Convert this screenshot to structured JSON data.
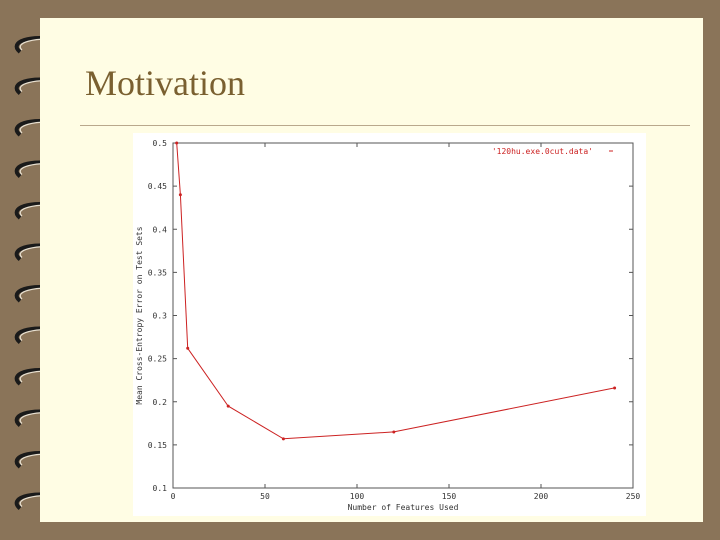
{
  "slide": {
    "title": "Motivation"
  },
  "colors": {
    "background": "#8a7459",
    "slide": "#fffde4",
    "title": "#7a6030",
    "series": "#cc2222"
  },
  "chart_data": {
    "type": "line",
    "xlabel": "Number of Features Used",
    "ylabel": "Mean Cross-Entropy Error on Test Sets",
    "xlim": [
      0,
      250
    ],
    "ylim": [
      0.1,
      0.5
    ],
    "x_ticks": [
      "0",
      "50",
      "100",
      "150",
      "200",
      "250"
    ],
    "y_ticks": [
      "0.1",
      "0.15",
      "0.2",
      "0.25",
      "0.3",
      "0.35",
      "0.4",
      "0.45",
      "0.5"
    ],
    "legend": "top-right",
    "series": [
      {
        "name": "'120hu.exe.0cut.data'",
        "x": [
          2,
          4,
          8,
          30,
          60,
          120,
          240
        ],
        "y": [
          0.5,
          0.44,
          0.262,
          0.195,
          0.157,
          0.165,
          0.216
        ]
      }
    ]
  }
}
